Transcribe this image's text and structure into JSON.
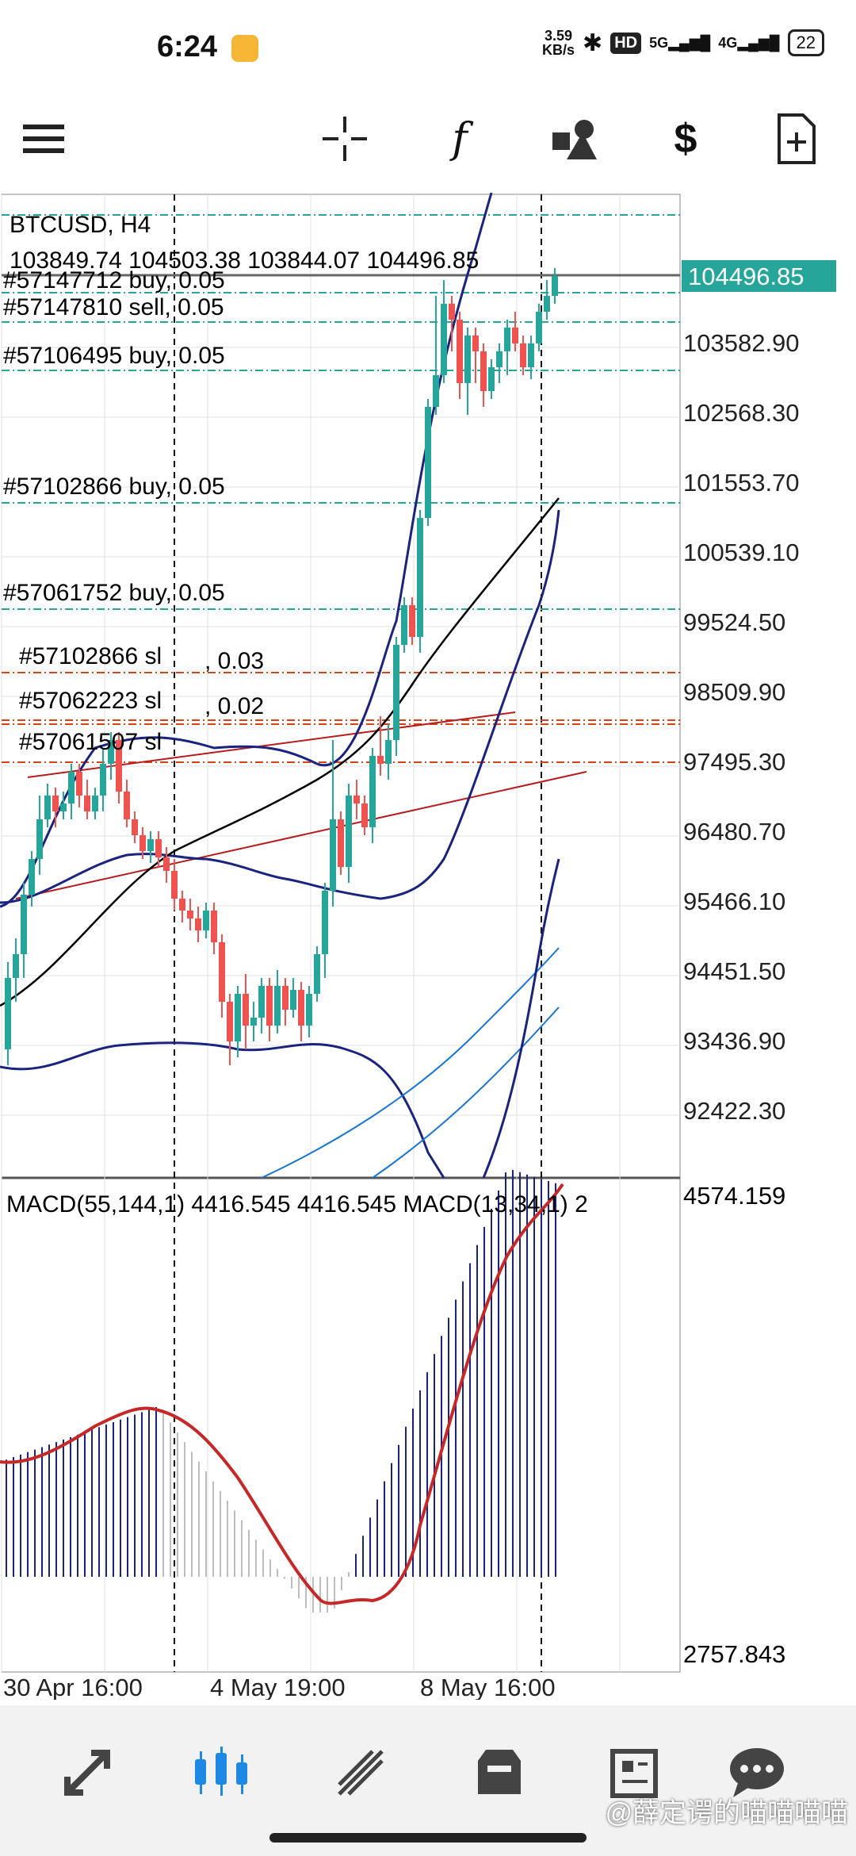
{
  "status_bar": {
    "time": "6:24",
    "net_speed_value": "3.59",
    "net_speed_unit": "KB/s",
    "hd_badge": "HD",
    "sim1": "5G",
    "sim2": "4G",
    "battery": "22"
  },
  "toolbar": {
    "items": [
      "menu-icon",
      "crosshair-icon",
      "indicators-icon",
      "objects-icon",
      "trade-icon",
      "new-order-icon"
    ]
  },
  "chart": {
    "symbol_tf": "BTCUSD, H4",
    "ohlc": "103849.74 104503.38 103844.07 104496.85",
    "current_price": "104496.85",
    "price_axis": [
      "103582.90",
      "102568.30",
      "101553.70",
      "100539.10",
      "99524.50",
      "98509.90",
      "97495.30",
      "96480.70",
      "95466.10",
      "94451.50",
      "93436.90",
      "92422.30"
    ],
    "orders": [
      {
        "text": "#57147712 buy, 0.05"
      },
      {
        "text": "#57147810 sell, 0.05"
      },
      {
        "text": "#57106495 buy, 0.05"
      },
      {
        "text": "#57102866 buy, 0.05"
      },
      {
        "text": "#57061752 buy, 0.05"
      }
    ],
    "sl_labels": [
      {
        "a": "#57102866 sl",
        "b": ", 0.03"
      },
      {
        "a": "#57062223 sl",
        "b": ", 0.02"
      },
      {
        "a": "#57061507 sl",
        "b": ""
      }
    ],
    "macd_label": "MACD(55,144,1) 4416.545 4416.545 MACD(13,34,1) 2",
    "macd_axis_top": "4574.159",
    "macd_axis_bottom": "2757.843",
    "time_axis": [
      "30 Apr 16:00",
      "4 May 19:00",
      "8 May 16:00"
    ],
    "colors": {
      "bull": "#26a69a",
      "bear": "#ef5350",
      "bands": "#1a237e",
      "ma_black": "#000000",
      "macd_signal": "#d32f2f",
      "price_label_bg": "#26a69a"
    }
  },
  "nav": {
    "items": [
      "quotes-icon",
      "chart-icon",
      "trade-icon",
      "history-icon",
      "news-icon",
      "messages-icon"
    ]
  },
  "watermark": "@薛定谔的喵喵喵喵"
}
